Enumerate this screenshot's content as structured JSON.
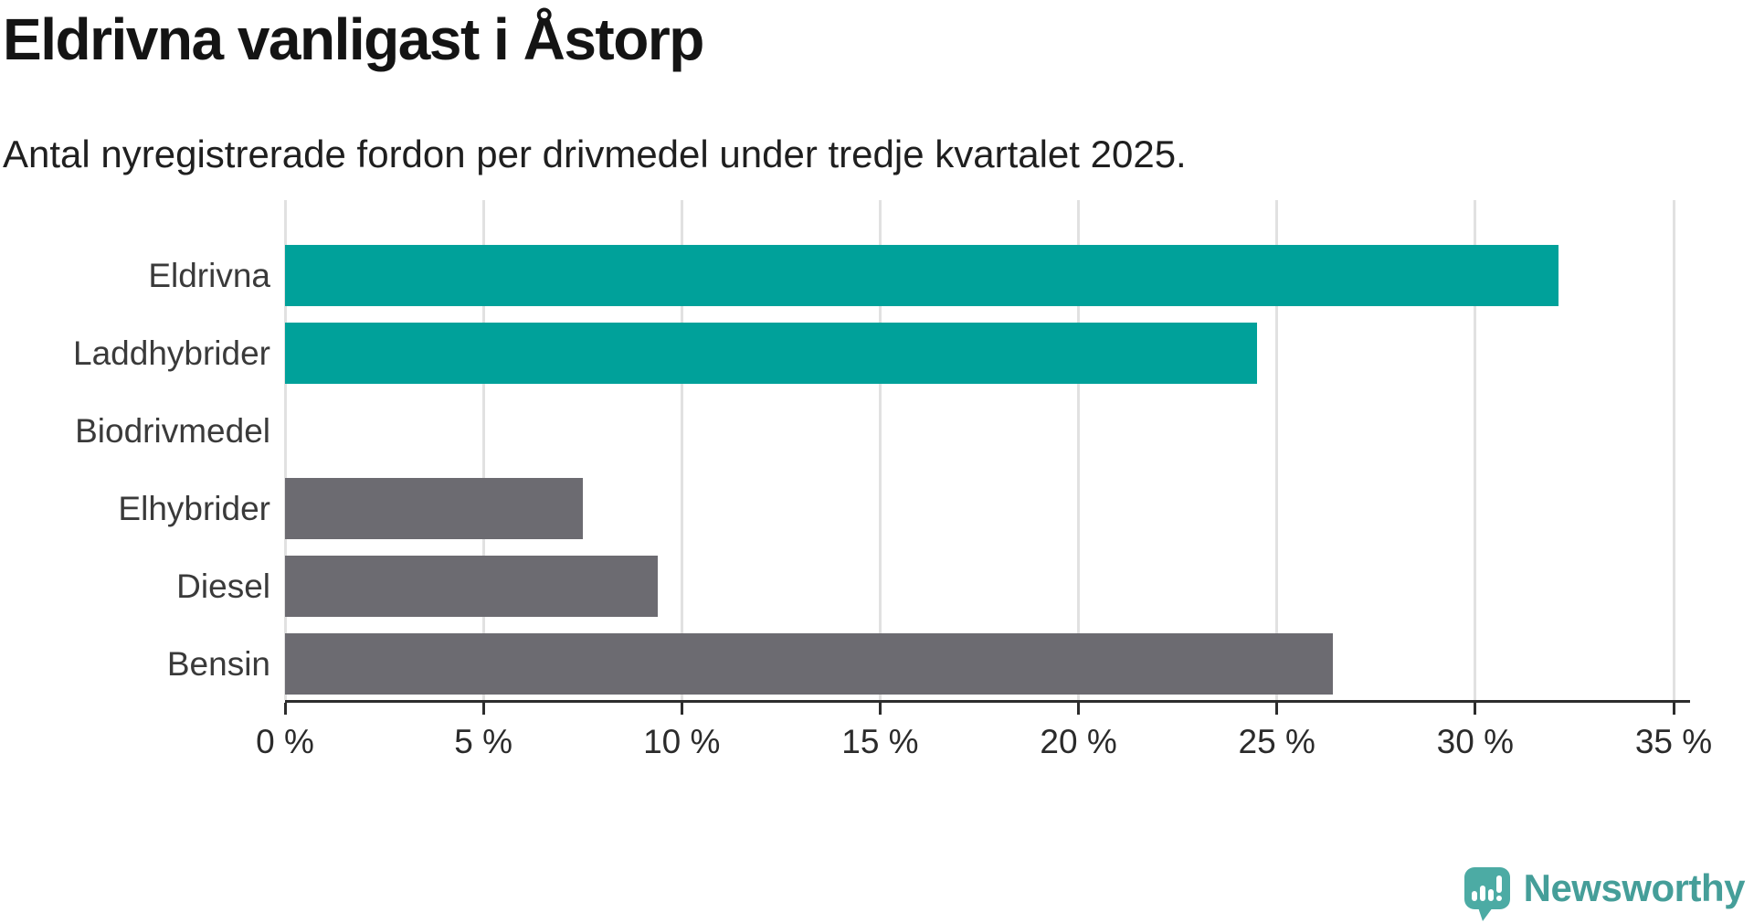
{
  "title": "Eldrivna vanligast i Åstorp",
  "subtitle": "Antal nyregistrerade fordon per drivmedel under tredje kvartalet 2025.",
  "chart_data": {
    "type": "bar",
    "orientation": "horizontal",
    "title": "Eldrivna vanligast i Åstorp",
    "subtitle": "Antal nyregistrerade fordon per drivmedel under tredje kvartalet 2025.",
    "categories": [
      "Eldrivna",
      "Laddhybrider",
      "Biodrivmedel",
      "Elhybrider",
      "Diesel",
      "Bensin"
    ],
    "values": [
      32.1,
      24.5,
      0,
      7.5,
      9.4,
      26.4
    ],
    "unit": "%",
    "xlim": [
      0,
      35
    ],
    "x_ticks": [
      0,
      5,
      10,
      15,
      20,
      25,
      30,
      35
    ],
    "x_tick_labels": [
      "0 %",
      "5 %",
      "10 %",
      "15 %",
      "20 %",
      "25 %",
      "30 %",
      "35 %"
    ],
    "grid": true,
    "legend": "none",
    "bar_colors": [
      "#00A19A",
      "#00A19A",
      "#6C6B71",
      "#6C6B71",
      "#6C6B71",
      "#6C6B71"
    ],
    "highlight_color": "#00A19A",
    "default_color": "#6C6B71",
    "gridline_color": "#e1e1e1",
    "axis_color": "#2d2d2d"
  },
  "footer": {
    "brand": "Newsworthy",
    "brand_color": "#459E99",
    "logo_icon": "newsworthy-speech-bubble-bar-chart-icon"
  }
}
